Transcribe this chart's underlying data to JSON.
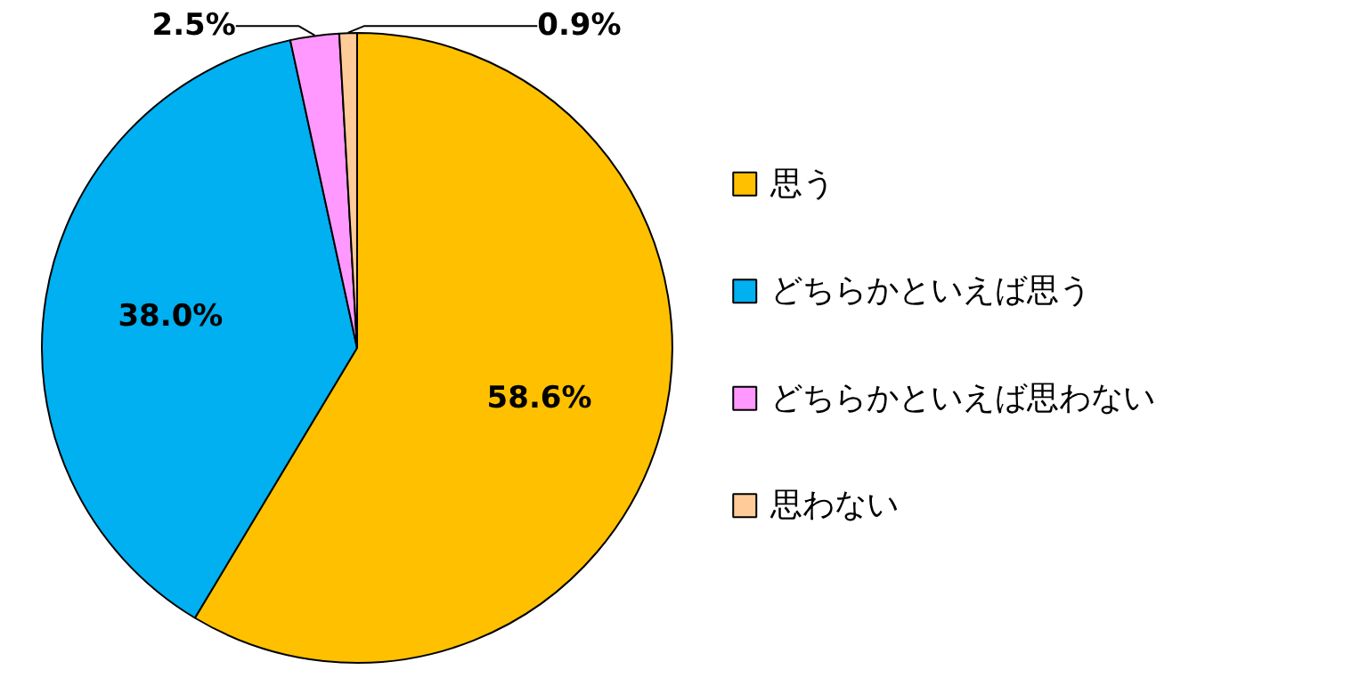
{
  "chart_data": {
    "type": "pie",
    "categories": [
      "思う",
      "どちらかといえば思う",
      "どちらかといえば思わない",
      "思わない"
    ],
    "values": [
      58.6,
      38.0,
      2.5,
      0.9
    ],
    "colors": [
      "#ffc000",
      "#00b0f0",
      "#ff99ff",
      "#ffcc99"
    ],
    "value_labels": [
      "58.6%",
      "38.0%",
      "2.5%",
      "0.9%"
    ],
    "legend": "right"
  }
}
